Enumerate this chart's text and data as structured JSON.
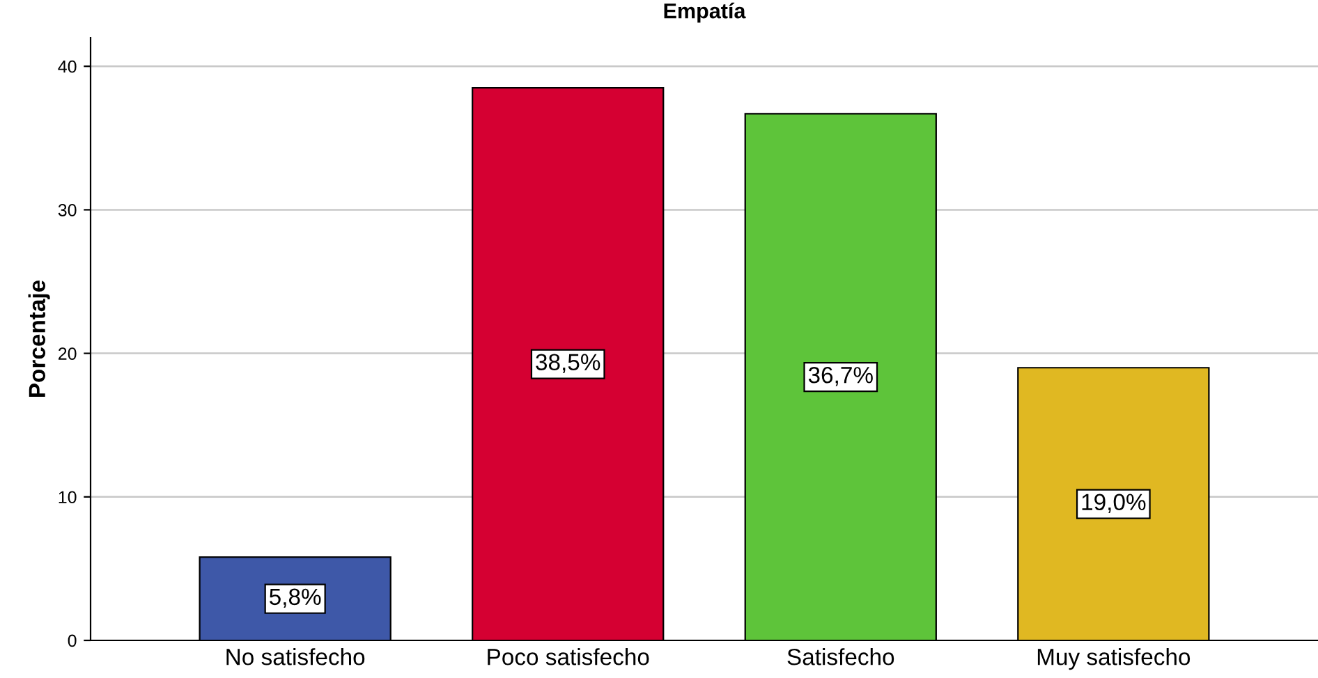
{
  "chart_data": {
    "type": "bar",
    "title": "Empatía",
    "ylabel": "Porcentaje",
    "categories": [
      "No satisfecho",
      "Poco satisfecho",
      "Satisfecho",
      "Muy satisfecho"
    ],
    "values": [
      5.8,
      38.5,
      36.7,
      19.0
    ],
    "colors": [
      "#3e58a8",
      "#d50032",
      "#5ec43a",
      "#e0b822"
    ],
    "value_labels": [
      "5,8%",
      "38,5%",
      "36,7%",
      "19,0%"
    ],
    "ylim": [
      0,
      42
    ],
    "yticks": [
      0,
      10,
      20,
      30,
      40
    ],
    "grid": "y"
  }
}
